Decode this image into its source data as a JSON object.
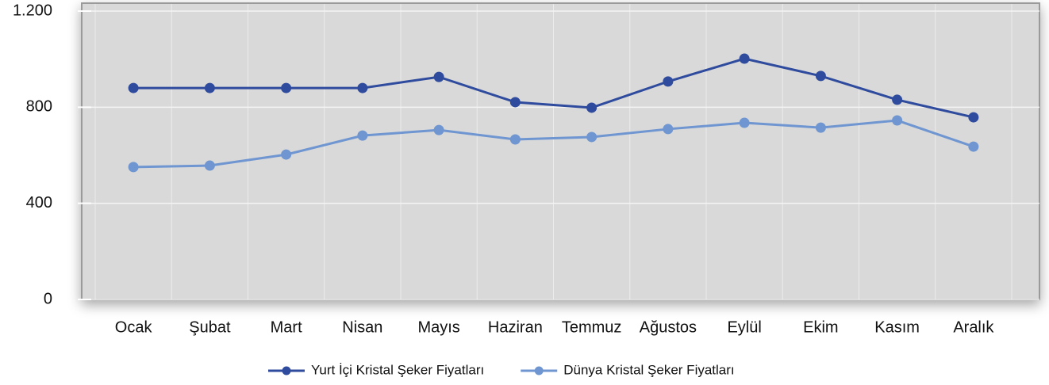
{
  "chart_data": {
    "type": "line",
    "categories": [
      "Ocak",
      "Şubat",
      "Mart",
      "Nisan",
      "Mayıs",
      "Haziran",
      "Temmuz",
      "Ağustos",
      "Eylül",
      "Ekim",
      "Kasım",
      "Aralık"
    ],
    "series": [
      {
        "name": "Yurt İçi Kristal Şeker Fiyatları",
        "color": "#2f4b9e",
        "values": [
          880,
          880,
          880,
          880,
          926,
          821,
          798,
          907,
          1002,
          930,
          831,
          758
        ]
      },
      {
        "name": "Dünya Kristal Şeker Fiyatları",
        "color": "#6f96d1",
        "values": [
          551,
          557,
          603,
          682,
          705,
          666,
          676,
          709,
          735,
          715,
          745,
          636
        ]
      }
    ],
    "ylim": [
      0,
      1200
    ],
    "yticks": [
      0,
      400,
      800,
      {
        "value": 1200,
        "label": "1.200"
      }
    ],
    "grid": true,
    "legend": "bottom"
  }
}
